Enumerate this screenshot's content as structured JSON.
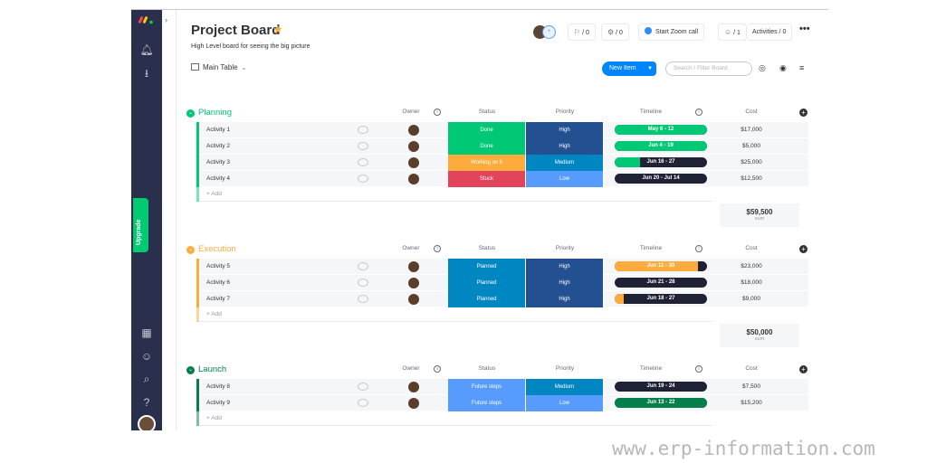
{
  "board": {
    "title": "Project Board",
    "description": "High Level board for seeing the big picture",
    "view": "Main Table"
  },
  "header": {
    "guests_count": "/ 0",
    "integrations_count": "/ 0",
    "zoom_label": "Start Zoom call",
    "members_count": "/ 1",
    "activities_label": "Activities / 0",
    "avatar_badge": "+"
  },
  "toolbar": {
    "new_item_label": "New Item",
    "search_placeholder": "Search / Filter Board"
  },
  "sidebar": {
    "upgrade_label": "Upgrade"
  },
  "columns": {
    "owner": "Owner",
    "status": "Status",
    "priority": "Priority",
    "timeline": "Timeline",
    "cost": "Cost",
    "add_label": "+ Add",
    "sum_label": "sum"
  },
  "colors": {
    "done": "#00c875",
    "working": "#fdab3d",
    "stuck": "#e2445c",
    "planned": "#0086c0",
    "future": "#579bfc",
    "high": "#225091",
    "medium": "#0086c0",
    "low": "#579bfc"
  },
  "groups": [
    {
      "name": "Planning",
      "color": "#00c875",
      "sum": "$59,500",
      "rows": [
        {
          "name": "Activity 1",
          "status": "Done",
          "status_color": "#00c875",
          "priority": "High",
          "priority_color": "#225091",
          "timeline": "May 6 - 12",
          "timeline_progress": 1.0,
          "timeline_color": "#00c875",
          "cost": "$17,000"
        },
        {
          "name": "Activity 2",
          "status": "Done",
          "status_color": "#00c875",
          "priority": "High",
          "priority_color": "#225091",
          "timeline": "Jun 4 - 19",
          "timeline_progress": 1.0,
          "timeline_color": "#00c875",
          "cost": "$5,000"
        },
        {
          "name": "Activity 3",
          "status": "Working on it",
          "status_color": "#fdab3d",
          "priority": "Medium",
          "priority_color": "#0086c0",
          "timeline": "Jun 16 - 27",
          "timeline_progress": 0.27,
          "timeline_color": "#00c875",
          "cost": "$25,000"
        },
        {
          "name": "Activity 4",
          "status": "Stuck",
          "status_color": "#e2445c",
          "priority": "Low",
          "priority_color": "#579bfc",
          "timeline": "Jun 20 - Jul 14",
          "timeline_progress": 0.0,
          "timeline_color": "#00c875",
          "cost": "$12,500"
        }
      ]
    },
    {
      "name": "Execution",
      "color": "#fdab3d",
      "sum": "$50,000",
      "rows": [
        {
          "name": "Activity 5",
          "status": "Planned",
          "status_color": "#0086c0",
          "priority": "High",
          "priority_color": "#225091",
          "timeline": "Jun 11 - 30",
          "timeline_progress": 0.9,
          "timeline_color": "#fdab3d",
          "cost": "$23,000"
        },
        {
          "name": "Activity 6",
          "status": "Planned",
          "status_color": "#0086c0",
          "priority": "High",
          "priority_color": "#225091",
          "timeline": "Jun 21 - 28",
          "timeline_progress": 0.0,
          "timeline_color": "#fdab3d",
          "cost": "$18,000"
        },
        {
          "name": "Activity 7",
          "status": "Planned",
          "status_color": "#0086c0",
          "priority": "High",
          "priority_color": "#225091",
          "timeline": "Jun 18 - 27",
          "timeline_progress": 0.1,
          "timeline_color": "#fdab3d",
          "cost": "$9,000"
        }
      ]
    },
    {
      "name": "Launch",
      "color": "#037f4c",
      "sum": "",
      "rows": [
        {
          "name": "Activity 8",
          "status": "Future steps",
          "status_color": "#579bfc",
          "priority": "Medium",
          "priority_color": "#0086c0",
          "timeline": "Jun 19 - 24",
          "timeline_progress": 0.0,
          "timeline_color": "#037f4c",
          "cost": "$7,500"
        },
        {
          "name": "Activity 9",
          "status": "Future steps",
          "status_color": "#579bfc",
          "priority": "Low",
          "priority_color": "#579bfc",
          "timeline": "Jun 13 - 22",
          "timeline_progress": 1.0,
          "timeline_color": "#037f4c",
          "cost": "$15,200"
        }
      ]
    }
  ],
  "watermark": "www.erp-information.com"
}
